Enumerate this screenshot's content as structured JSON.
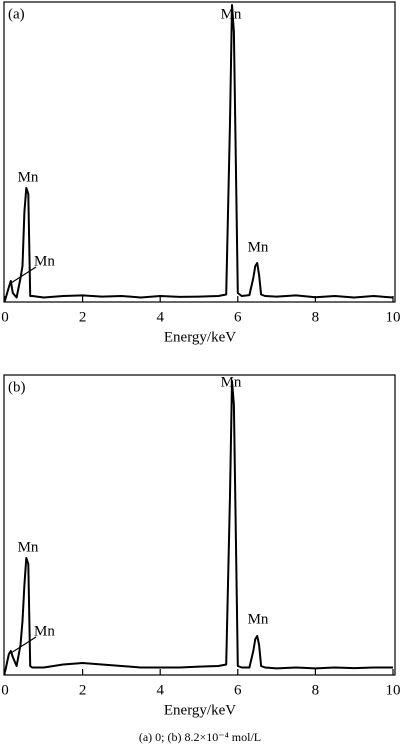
{
  "chart_data": [
    {
      "type": "line",
      "panel_label": "(a)",
      "xlabel": "Energy/keV",
      "xlim": [
        0,
        10
      ],
      "xticks": [
        0,
        2,
        4,
        6,
        8,
        10
      ],
      "ylim": [
        0,
        100
      ],
      "color": "#000000",
      "x": [
        0,
        0.1,
        0.15,
        0.2,
        0.3,
        0.4,
        0.45,
        0.5,
        0.55,
        0.6,
        0.65,
        0.7,
        1,
        1.5,
        2,
        2.5,
        3,
        3.5,
        4,
        4.5,
        5,
        5.5,
        5.7,
        5.8,
        5.85,
        5.9,
        6.0,
        6.1,
        6.3,
        6.4,
        6.45,
        6.5,
        6.55,
        6.6,
        6.7,
        7,
        7.5,
        8,
        8.5,
        9,
        9.5,
        10
      ],
      "values": [
        0.5,
        5,
        7,
        3,
        1.5,
        8,
        12,
        30,
        38,
        36,
        2,
        2,
        1.5,
        2,
        2.2,
        1.8,
        2,
        1.5,
        2,
        1.7,
        1.8,
        2,
        2.5,
        60,
        99,
        90,
        3,
        2,
        2.3,
        8,
        12,
        13,
        9,
        2.5,
        2,
        1.8,
        2.2,
        1.6,
        2,
        1.5,
        2,
        1.5
      ],
      "annotations": [
        "Mn",
        "Mn",
        "Mn",
        "Mn"
      ]
    },
    {
      "type": "line",
      "panel_label": "(b)",
      "xlabel": "Energy/keV",
      "xlim": [
        0,
        10
      ],
      "xticks": [
        0,
        2,
        4,
        6,
        8,
        10
      ],
      "ylim": [
        0,
        100
      ],
      "color": "#000000",
      "x": [
        0,
        0.1,
        0.15,
        0.2,
        0.3,
        0.4,
        0.45,
        0.5,
        0.55,
        0.6,
        0.65,
        0.7,
        1,
        1.5,
        2,
        2.5,
        3,
        3.5,
        4,
        4.5,
        5,
        5.5,
        5.7,
        5.8,
        5.85,
        5.9,
        6.0,
        6.1,
        6.3,
        6.4,
        6.45,
        6.5,
        6.55,
        6.6,
        6.7,
        7,
        7.5,
        8,
        8.5,
        9,
        9.5,
        10
      ],
      "values": [
        1,
        7,
        8,
        6,
        3,
        10,
        18,
        30,
        39,
        37,
        3,
        2.5,
        2.5,
        3.5,
        4,
        3.5,
        3,
        2.5,
        2.5,
        2.5,
        2.8,
        3,
        3.5,
        60,
        98,
        90,
        3,
        2.5,
        2.5,
        8,
        12,
        13,
        10,
        3,
        2.5,
        2.2,
        2.5,
        2.2,
        2.5,
        2.3,
        2.5,
        2.5
      ],
      "annotations": [
        "Mn",
        "Mn",
        "Mn",
        "Mn"
      ]
    }
  ],
  "caption": "(a) 0; (b) 8.2×10⁻⁴ mol/L"
}
